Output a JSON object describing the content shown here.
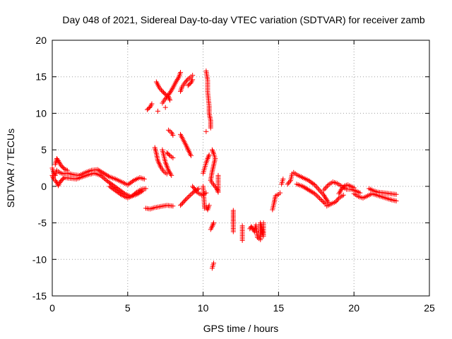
{
  "chart_data": {
    "type": "scatter",
    "title": "Day 048 of 2021, Sidereal Day-to-day VTEC variation (SDTVAR) for receiver zamb",
    "xlabel": "GPS time / hours",
    "ylabel": "SDTVAR / TECUs",
    "xlim": [
      0,
      25
    ],
    "ylim": [
      -15,
      20
    ],
    "xticks": [
      0,
      5,
      10,
      15,
      20,
      25
    ],
    "yticks": [
      -15,
      -10,
      -5,
      0,
      5,
      10,
      15,
      20
    ],
    "grid": true,
    "marker": "+",
    "color": "#ff0000",
    "series": [
      {
        "name": "SDTVAR",
        "segments": [
          [
            [
              0.0,
              2.5
            ],
            [
              0.1,
              1.8
            ],
            [
              0.2,
              1.5
            ],
            [
              0.3,
              2.2
            ],
            [
              0.4,
              2.0
            ],
            [
              0.5,
              1.9
            ],
            [
              0.7,
              1.7
            ],
            [
              1.0,
              1.8
            ],
            [
              1.4,
              1.6
            ],
            [
              1.8,
              1.5
            ],
            [
              2.2,
              1.9
            ],
            [
              2.6,
              2.2
            ],
            [
              3.0,
              2.3
            ],
            [
              3.4,
              1.8
            ],
            [
              3.8,
              1.3
            ],
            [
              4.2,
              1.0
            ],
            [
              4.6,
              0.6
            ],
            [
              5.0,
              0.2
            ],
            [
              5.4,
              0.8
            ],
            [
              5.8,
              1.2
            ],
            [
              6.1,
              1.0
            ]
          ],
          [
            [
              0.0,
              1.5
            ],
            [
              0.1,
              1.0
            ],
            [
              0.2,
              0.8
            ],
            [
              0.3,
              0.5
            ],
            [
              0.4,
              0.1
            ],
            [
              0.5,
              0.5
            ],
            [
              0.6,
              0.8
            ],
            [
              0.8,
              1.2
            ],
            [
              1.2,
              1.1
            ],
            [
              1.6,
              1.0
            ],
            [
              2.0,
              1.3
            ],
            [
              2.4,
              1.6
            ],
            [
              2.8,
              1.8
            ],
            [
              3.2,
              1.5
            ],
            [
              3.6,
              0.8
            ],
            [
              4.0,
              0.2
            ],
            [
              4.4,
              -0.4
            ],
            [
              4.8,
              -1.0
            ],
            [
              5.2,
              -1.4
            ],
            [
              5.6,
              -1.1
            ],
            [
              6.0,
              -0.6
            ]
          ],
          [
            [
              0.2,
              3.0
            ],
            [
              0.3,
              3.8
            ],
            [
              0.4,
              3.5
            ],
            [
              0.6,
              2.8
            ],
            [
              0.8,
              2.4
            ],
            [
              1.0,
              2.2
            ]
          ],
          [
            [
              3.8,
              0.0
            ],
            [
              4.2,
              -0.6
            ],
            [
              4.6,
              -1.2
            ],
            [
              5.0,
              -1.6
            ],
            [
              5.3,
              -1.3
            ],
            [
              5.6,
              -0.8
            ],
            [
              5.9,
              -0.4
            ],
            [
              6.2,
              -0.3
            ]
          ],
          [
            [
              6.2,
              -3.0
            ],
            [
              6.5,
              -3.1
            ],
            [
              6.8,
              -2.9
            ],
            [
              7.6,
              -2.6
            ],
            [
              8.0,
              -2.7
            ]
          ],
          [
            [
              6.3,
              10.5
            ],
            [
              6.5,
              10.9
            ],
            [
              6.6,
              11.3
            ]
          ],
          [
            [
              6.9,
              14.3
            ],
            [
              7.1,
              13.5
            ],
            [
              7.3,
              13.0
            ],
            [
              7.5,
              12.6
            ],
            [
              7.7,
              12.3
            ],
            [
              7.8,
              11.8
            ]
          ],
          [
            [
              7.0,
              10.3
            ]
          ],
          [
            [
              7.3,
              11.4
            ],
            [
              7.5,
              12.0
            ],
            [
              7.8,
              12.8
            ],
            [
              8.0,
              13.5
            ],
            [
              8.2,
              14.3
            ],
            [
              8.4,
              15.0
            ],
            [
              8.5,
              15.6
            ]
          ],
          [
            [
              7.5,
              10.8
            ]
          ],
          [
            [
              8.5,
              13.0
            ],
            [
              8.6,
              13.6
            ],
            [
              8.8,
              14.2
            ],
            [
              9.0,
              14.7
            ],
            [
              9.2,
              15.0
            ],
            [
              9.3,
              15.2
            ]
          ],
          [
            [
              9.0,
              13.8
            ],
            [
              9.2,
              14.2
            ],
            [
              9.3,
              14.6
            ]
          ],
          [
            [
              7.7,
              7.7
            ],
            [
              7.9,
              7.4
            ],
            [
              8.0,
              7.0
            ]
          ],
          [
            [
              7.6,
              4.6
            ],
            [
              7.8,
              4.2
            ],
            [
              8.0,
              3.9
            ]
          ],
          [
            [
              7.3,
              5.0
            ],
            [
              7.5,
              3.3
            ],
            [
              7.7,
              2.2
            ],
            [
              7.9,
              1.5
            ]
          ],
          [
            [
              6.8,
              5.3
            ],
            [
              6.9,
              4.5
            ],
            [
              7.0,
              3.5
            ],
            [
              7.2,
              2.6
            ],
            [
              7.4,
              2.0
            ],
            [
              7.6,
              1.7
            ]
          ],
          [
            [
              8.5,
              7.1
            ],
            [
              8.7,
              6.3
            ],
            [
              8.9,
              5.5
            ],
            [
              9.1,
              4.6
            ],
            [
              9.2,
              4.2
            ]
          ],
          [
            [
              8.5,
              -2.6
            ],
            [
              8.9,
              -1.7
            ],
            [
              9.3,
              -0.9
            ],
            [
              9.7,
              -0.3
            ]
          ],
          [
            [
              9.3,
              0.0
            ],
            [
              9.6,
              -0.8
            ],
            [
              9.9,
              -1.2
            ],
            [
              10.2,
              -0.9
            ]
          ],
          [
            [
              10.0,
              0.0
            ],
            [
              10.1,
              -3.0
            ],
            [
              10.2,
              -2.8
            ],
            [
              10.3,
              -3.2
            ],
            [
              10.4,
              -2.6
            ]
          ],
          [
            [
              10.0,
              1.8
            ],
            [
              10.1,
              2.5
            ],
            [
              10.2,
              3.2
            ],
            [
              10.3,
              3.8
            ],
            [
              10.4,
              4.3
            ]
          ],
          [
            [
              10.2,
              15.8
            ],
            [
              10.3,
              14.5
            ],
            [
              10.3,
              13.0
            ],
            [
              10.4,
              11.0
            ],
            [
              10.4,
              10.0
            ],
            [
              10.5,
              9.0
            ],
            [
              10.5,
              8.0
            ]
          ],
          [
            [
              10.2,
              7.5
            ]
          ],
          [
            [
              10.6,
              5.0
            ],
            [
              10.7,
              4.5
            ],
            [
              10.8,
              3.8
            ],
            [
              10.6,
              2.0
            ],
            [
              10.5,
              0.8
            ],
            [
              10.7,
              0.2
            ],
            [
              10.9,
              -0.3
            ],
            [
              11.0,
              -0.8
            ],
            [
              11.0,
              1.5
            ]
          ],
          [
            [
              10.5,
              -5.9
            ],
            [
              10.6,
              -5.5
            ],
            [
              10.7,
              -5.0
            ]
          ],
          [
            [
              10.6,
              -11.2
            ],
            [
              10.7,
              -10.5
            ]
          ],
          [
            [
              12.0,
              -3.3
            ],
            [
              12.0,
              -4.9
            ],
            [
              12.0,
              -6.2
            ]
          ],
          [
            [
              12.6,
              -5.4
            ],
            [
              12.6,
              -6.5
            ],
            [
              12.6,
              -7.4
            ]
          ],
          [
            [
              13.1,
              -5.8
            ],
            [
              13.2,
              -5.5
            ],
            [
              13.4,
              -6.2
            ],
            [
              13.5,
              -5.3
            ],
            [
              13.6,
              -7.0
            ],
            [
              13.8,
              -7.3
            ],
            [
              13.8,
              -5.0
            ],
            [
              14.0,
              -6.8
            ],
            [
              14.0,
              -5.0
            ]
          ],
          [
            [
              14.6,
              -3.2
            ],
            [
              14.7,
              -2.3
            ],
            [
              14.8,
              -1.3
            ],
            [
              15.0,
              -1.1
            ],
            [
              15.1,
              -0.9
            ]
          ],
          [
            [
              15.2,
              0.3
            ],
            [
              15.3,
              1.0
            ]
          ],
          [
            [
              15.6,
              0.3
            ],
            [
              15.8,
              0.8
            ],
            [
              15.9,
              1.7
            ],
            [
              16.0,
              1.9
            ],
            [
              16.2,
              1.6
            ],
            [
              16.6,
              1.2
            ],
            [
              17.0,
              0.8
            ],
            [
              17.4,
              0.2
            ],
            [
              17.7,
              -0.5
            ],
            [
              18.0,
              -1.2
            ],
            [
              18.3,
              -2.2
            ]
          ],
          [
            [
              16.2,
              0.3
            ],
            [
              16.6,
              0.0
            ],
            [
              17.0,
              -0.5
            ],
            [
              17.4,
              -1.0
            ],
            [
              17.8,
              -1.8
            ],
            [
              18.1,
              -2.4
            ]
          ],
          [
            [
              18.0,
              -0.5
            ],
            [
              18.3,
              0.2
            ],
            [
              18.6,
              0.6
            ],
            [
              18.9,
              0.4
            ],
            [
              19.2,
              0.0
            ],
            [
              19.5,
              -0.4
            ],
            [
              19.8,
              -0.4
            ],
            [
              20.1,
              -0.6
            ],
            [
              20.4,
              -0.9
            ]
          ],
          [
            [
              18.2,
              -2.7
            ],
            [
              18.5,
              -2.4
            ],
            [
              18.8,
              -2.1
            ],
            [
              19.0,
              -1.6
            ],
            [
              19.3,
              -1.2
            ]
          ],
          [
            [
              19.0,
              -1.0
            ],
            [
              19.2,
              -0.3
            ],
            [
              19.4,
              0.1
            ],
            [
              19.6,
              0.2
            ],
            [
              19.8,
              0.0
            ],
            [
              20.0,
              -0.2
            ]
          ],
          [
            [
              20.0,
              -1.0
            ],
            [
              20.3,
              -1.4
            ],
            [
              20.6,
              -1.6
            ],
            [
              20.9,
              -1.3
            ],
            [
              21.2,
              -1.0
            ],
            [
              21.5,
              -1.2
            ],
            [
              21.8,
              -1.4
            ],
            [
              22.1,
              -1.6
            ],
            [
              22.4,
              -1.8
            ],
            [
              22.8,
              -2.0
            ]
          ],
          [
            [
              21.0,
              -0.3
            ],
            [
              21.3,
              -0.6
            ],
            [
              21.6,
              -0.8
            ],
            [
              22.0,
              -0.9
            ],
            [
              22.4,
              -1.0
            ],
            [
              22.8,
              -1.1
            ]
          ]
        ]
      }
    ]
  }
}
